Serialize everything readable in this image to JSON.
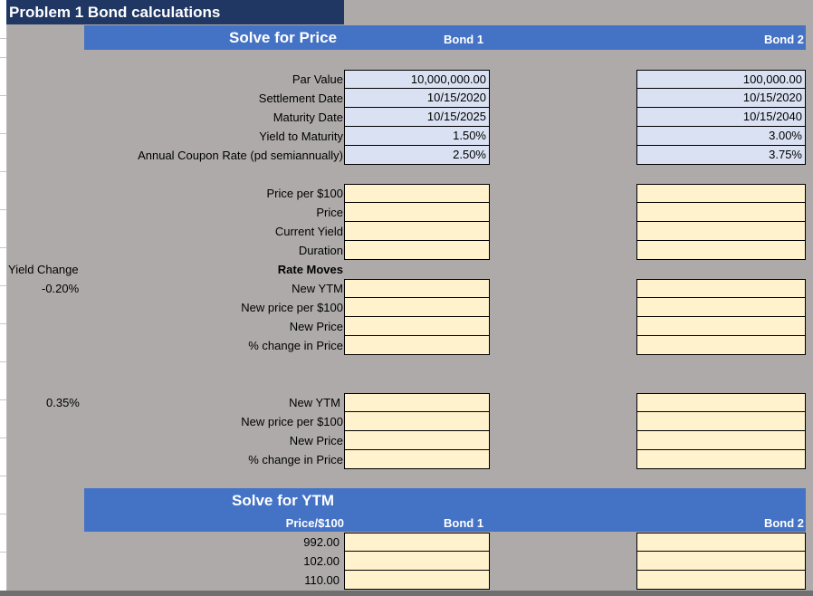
{
  "title": "Problem 1 Bond calculations",
  "colors": {
    "title_bg": "#203764",
    "header_band": "#4472c4",
    "input_cell": "#d9e1f2",
    "output_cell": "#fff2cc",
    "sheet_bg": "#aeaaaa"
  },
  "price_section": {
    "heading": "Solve for Price",
    "bond1_header": "Bond 1",
    "bond2_header": "Bond 2",
    "inputs": [
      {
        "label": "Par Value",
        "bond1": "10,000,000.00",
        "bond2": "100,000.00"
      },
      {
        "label": "Settlement Date",
        "bond1": "10/15/2020",
        "bond2": "10/15/2020"
      },
      {
        "label": "Maturity Date",
        "bond1": "10/15/2025",
        "bond2": "10/15/2040"
      },
      {
        "label": "Yield to Maturity",
        "bond1": "1.50%",
        "bond2": "3.00%"
      },
      {
        "label": "Annual Coupon Rate (pd semiannually)",
        "bond1": "2.50%",
        "bond2": "3.75%"
      }
    ],
    "outputs": [
      {
        "label": "Price per $100"
      },
      {
        "label": "Price"
      },
      {
        "label": "Current Yield"
      },
      {
        "label": "Duration"
      }
    ]
  },
  "rate_moves": {
    "yield_change_label": "Yield Change",
    "heading": "Rate Moves",
    "scenarios": [
      {
        "change": "-0.20%",
        "rows": [
          "New YTM",
          "New price per $100",
          "New Price",
          "% change in Price"
        ]
      },
      {
        "change": "0.35%",
        "rows": [
          "New YTM",
          "New price per $100",
          "New Price",
          "% change in Price"
        ]
      }
    ]
  },
  "ytm_section": {
    "heading": "Solve for YTM",
    "price_header": "Price/$100",
    "bond1_header": "Bond 1",
    "bond2_header": "Bond 2",
    "prices": [
      "992.00",
      "102.00",
      "110.00"
    ]
  }
}
